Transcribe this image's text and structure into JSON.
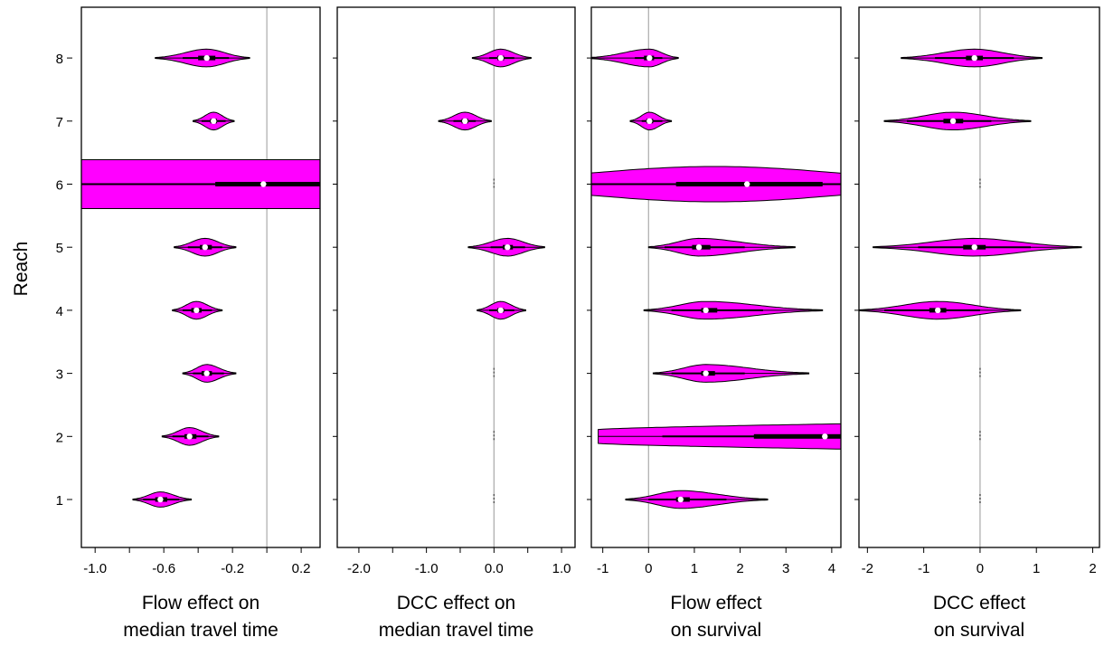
{
  "figure": {
    "y_axis_label": "Reach",
    "y_tick_labels": [
      "1",
      "2",
      "3",
      "4",
      "5",
      "6",
      "7",
      "8"
    ]
  },
  "colors": {
    "violin_fill": "#ff00ff",
    "violin_outline": "#000000",
    "reference_line": "#b0b0b0",
    "median_dot": "#ffffff",
    "panel_border": "#000000"
  },
  "chart_data": [
    {
      "type": "violin",
      "xlabel_line1": "Flow effect on",
      "xlabel_line2": "median travel time",
      "xlim": [
        -1.08,
        0.31
      ],
      "reference_x": 0,
      "xticks": [
        -1.0,
        -0.6,
        -0.2,
        0.2
      ],
      "xtick_labels": [
        "-1.0",
        "-0.6",
        "-0.2",
        "0.2"
      ],
      "minor_xticks": [
        -0.8,
        -0.4,
        0.0
      ],
      "reaches": [
        {
          "reach": 1,
          "median": -0.62,
          "q1": -0.65,
          "q3": -0.58,
          "lo": -0.72,
          "hi": -0.51,
          "min": -0.78,
          "max": -0.44,
          "width": 0.12
        },
        {
          "reach": 2,
          "median": -0.45,
          "q1": -0.48,
          "q3": -0.41,
          "lo": -0.55,
          "hi": -0.34,
          "min": -0.61,
          "max": -0.28,
          "width": 0.14
        },
        {
          "reach": 3,
          "median": -0.35,
          "q1": -0.38,
          "q3": -0.32,
          "lo": -0.43,
          "hi": -0.25,
          "min": -0.49,
          "max": -0.18,
          "width": 0.14
        },
        {
          "reach": 4,
          "median": -0.41,
          "q1": -0.44,
          "q3": -0.38,
          "lo": -0.49,
          "hi": -0.32,
          "min": -0.55,
          "max": -0.26,
          "width": 0.14
        },
        {
          "reach": 5,
          "median": -0.36,
          "q1": -0.39,
          "q3": -0.32,
          "lo": -0.46,
          "hi": -0.26,
          "min": -0.54,
          "max": -0.18,
          "width": 0.14
        },
        {
          "reach": 6,
          "median": -0.02,
          "q1": -0.3,
          "q3": 0.35,
          "lo": -1.2,
          "hi": 0.5,
          "min": -1.2,
          "max": 0.5,
          "width": 0.38,
          "flat": true
        },
        {
          "reach": 7,
          "median": -0.31,
          "q1": -0.33,
          "q3": -0.29,
          "lo": -0.38,
          "hi": -0.24,
          "min": -0.43,
          "max": -0.19,
          "width": 0.14
        },
        {
          "reach": 8,
          "median": -0.35,
          "q1": -0.4,
          "q3": -0.3,
          "lo": -0.49,
          "hi": -0.22,
          "min": -0.65,
          "max": -0.1,
          "width": 0.14
        }
      ]
    },
    {
      "type": "violin",
      "xlabel_line1": "DCC effect on",
      "xlabel_line2": "median travel time",
      "xlim": [
        -2.32,
        1.2
      ],
      "reference_x": 0,
      "xticks": [
        -2.0,
        -1.0,
        0.0,
        1.0
      ],
      "xtick_labels": [
        "-2.0",
        "-1.0",
        "0.0",
        "1.0"
      ],
      "minor_xticks": [
        -1.5,
        -0.5,
        0.5
      ],
      "reaches": [
        {
          "reach": 1,
          "empty": true
        },
        {
          "reach": 2,
          "empty": true
        },
        {
          "reach": 3,
          "empty": true
        },
        {
          "reach": 4,
          "median": 0.1,
          "q1": 0.05,
          "q3": 0.15,
          "lo": -0.07,
          "hi": 0.3,
          "min": -0.25,
          "max": 0.47,
          "width": 0.14
        },
        {
          "reach": 5,
          "median": 0.2,
          "q1": 0.13,
          "q3": 0.28,
          "lo": -0.05,
          "hi": 0.46,
          "min": -0.38,
          "max": 0.75,
          "width": 0.14
        },
        {
          "reach": 6,
          "empty": true
        },
        {
          "reach": 7,
          "median": -0.43,
          "q1": -0.48,
          "q3": -0.38,
          "lo": -0.6,
          "hi": -0.27,
          "min": -0.82,
          "max": -0.04,
          "width": 0.14
        },
        {
          "reach": 8,
          "median": 0.1,
          "q1": 0.05,
          "q3": 0.15,
          "lo": -0.07,
          "hi": 0.3,
          "min": -0.32,
          "max": 0.55,
          "width": 0.14
        }
      ]
    },
    {
      "type": "violin",
      "xlabel_line1": "Flow effect",
      "xlabel_line2": "on survival",
      "xlim": [
        -1.25,
        4.2
      ],
      "reference_x": 0,
      "xticks": [
        -1,
        0,
        1,
        2,
        3,
        4
      ],
      "xtick_labels": [
        "-1",
        "0",
        "1",
        "2",
        "3",
        "4"
      ],
      "minor_xticks": [],
      "reaches": [
        {
          "reach": 1,
          "median": 0.7,
          "q1": 0.6,
          "q3": 0.9,
          "lo": 0.0,
          "hi": 1.7,
          "min": -0.5,
          "max": 2.6,
          "width": 0.14
        },
        {
          "reach": 2,
          "median": 3.85,
          "q1": 2.3,
          "q3": 4.2,
          "lo": 0.3,
          "hi": 4.2,
          "min": -1.1,
          "max": 4.2,
          "width": 0.2,
          "wedge": true
        },
        {
          "reach": 3,
          "median": 1.25,
          "q1": 1.15,
          "q3": 1.45,
          "lo": 0.5,
          "hi": 2.1,
          "min": 0.1,
          "max": 3.5,
          "width": 0.14
        },
        {
          "reach": 4,
          "median": 1.25,
          "q1": 1.15,
          "q3": 1.5,
          "lo": 0.5,
          "hi": 2.5,
          "min": -0.1,
          "max": 3.8,
          "width": 0.14
        },
        {
          "reach": 5,
          "median": 1.1,
          "q1": 0.95,
          "q3": 1.35,
          "lo": 0.35,
          "hi": 2.1,
          "min": 0.0,
          "max": 3.2,
          "width": 0.14
        },
        {
          "reach": 6,
          "median": 2.15,
          "q1": 0.6,
          "q3": 3.8,
          "lo": -1.3,
          "hi": 4.2,
          "min": -1.3,
          "max": 4.2,
          "width": 0.28,
          "lens": true
        },
        {
          "reach": 7,
          "median": 0.02,
          "q1": -0.05,
          "q3": 0.1,
          "lo": -0.15,
          "hi": 0.3,
          "min": -0.4,
          "max": 0.5,
          "width": 0.14
        },
        {
          "reach": 8,
          "median": 0.02,
          "q1": -0.1,
          "q3": 0.12,
          "lo": -0.3,
          "hi": 0.3,
          "min": -1.3,
          "max": 0.65,
          "width": 0.14
        }
      ]
    },
    {
      "type": "violin",
      "xlabel_line1": "DCC effect",
      "xlabel_line2": "on survival",
      "xlim": [
        -2.15,
        2.12
      ],
      "reference_x": 0,
      "xticks": [
        -2,
        -1,
        0,
        1,
        2
      ],
      "xtick_labels": [
        "-2",
        "-1",
        "0",
        "1",
        "2"
      ],
      "minor_xticks": [],
      "reaches": [
        {
          "reach": 1,
          "empty": true
        },
        {
          "reach": 2,
          "empty": true
        },
        {
          "reach": 3,
          "empty": true
        },
        {
          "reach": 4,
          "median": -0.75,
          "q1": -0.9,
          "q3": -0.6,
          "lo": -1.7,
          "hi": 0.0,
          "min": -2.15,
          "max": 0.72,
          "width": 0.14
        },
        {
          "reach": 5,
          "median": -0.1,
          "q1": -0.3,
          "q3": 0.1,
          "lo": -1.1,
          "hi": 0.9,
          "min": -1.9,
          "max": 1.8,
          "width": 0.14
        },
        {
          "reach": 6,
          "empty": true
        },
        {
          "reach": 7,
          "median": -0.48,
          "q1": -0.65,
          "q3": -0.3,
          "lo": -1.3,
          "hi": 0.2,
          "min": -1.7,
          "max": 0.9,
          "width": 0.14
        },
        {
          "reach": 8,
          "median": -0.1,
          "q1": -0.25,
          "q3": 0.05,
          "lo": -0.8,
          "hi": 0.6,
          "min": -1.4,
          "max": 1.1,
          "width": 0.14
        }
      ]
    }
  ]
}
